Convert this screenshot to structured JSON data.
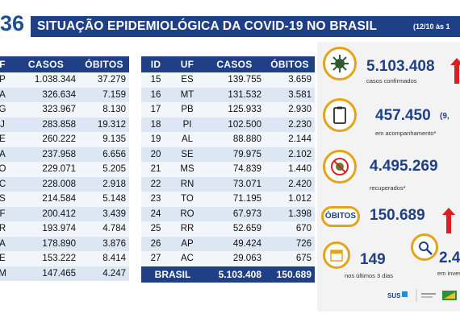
{
  "header": {
    "number": "36",
    "title": "SITUAÇÃO EPIDEMIOLÓGICA DA COVID-19 NO BRASIL",
    "date": "(12/10 às 1"
  },
  "left_table": {
    "columns": [
      "F",
      "CASOS",
      "ÓBITOS"
    ],
    "rows": [
      [
        "P",
        "1.038.344",
        "37.279"
      ],
      [
        "A",
        "326.634",
        "7.159"
      ],
      [
        "G",
        "323.967",
        "8.130"
      ],
      [
        "J",
        "283.858",
        "19.312"
      ],
      [
        "E",
        "260.222",
        "9.135"
      ],
      [
        "A",
        "237.958",
        "6.656"
      ],
      [
        "O",
        "229.071",
        "5.205"
      ],
      [
        "C",
        "228.008",
        "2.918"
      ],
      [
        "S",
        "214.584",
        "5.148"
      ],
      [
        "F",
        "200.412",
        "3.439"
      ],
      [
        "R",
        "193.974",
        "4.784"
      ],
      [
        "A",
        "178.890",
        "3.876"
      ],
      [
        "E",
        "153.222",
        "8.414"
      ],
      [
        "M",
        "147.465",
        "4.247"
      ]
    ]
  },
  "right_table": {
    "columns": [
      "ID",
      "UF",
      "CASOS",
      "ÓBITOS"
    ],
    "rows": [
      [
        "15",
        "ES",
        "139.755",
        "3.659"
      ],
      [
        "16",
        "MT",
        "131.532",
        "3.581"
      ],
      [
        "17",
        "PB",
        "125.933",
        "2.930"
      ],
      [
        "18",
        "PI",
        "102.500",
        "2.230"
      ],
      [
        "19",
        "AL",
        "88.880",
        "2.144"
      ],
      [
        "20",
        "SE",
        "79.975",
        "2.102"
      ],
      [
        "21",
        "MS",
        "74.839",
        "1.440"
      ],
      [
        "22",
        "RN",
        "73.071",
        "2.420"
      ],
      [
        "23",
        "TO",
        "71.195",
        "1.012"
      ],
      [
        "24",
        "RO",
        "67.973",
        "1.398"
      ],
      [
        "25",
        "RR",
        "52.659",
        "670"
      ],
      [
        "26",
        "AP",
        "49.424",
        "726"
      ],
      [
        "27",
        "AC",
        "29.063",
        "675"
      ]
    ],
    "total": [
      "BRASIL",
      "5.103.408",
      "150.689"
    ]
  },
  "stats": {
    "confirmed": {
      "value": "5.103.408",
      "label": "casos confirmados"
    },
    "followup": {
      "value": "457.450",
      "value_suffix": "(9,",
      "label": "em acompanhamento*"
    },
    "recovered": {
      "value": "4.495.269",
      "label": "recuperados*"
    },
    "deaths": {
      "badge": "ÓBITOS",
      "value": "150.689"
    },
    "last3": {
      "value": "149",
      "label": "nos últimos 3 dias"
    },
    "investigation": {
      "value": "2.4",
      "label": "em inves"
    }
  },
  "colors": {
    "navy": "#1f3f86",
    "gold": "#e3a41c",
    "red": "#d91f1f"
  },
  "icons": [
    "virus-icon",
    "clipboard-icon",
    "no-virus-icon",
    "calendar-icon",
    "magnifier-icon"
  ]
}
